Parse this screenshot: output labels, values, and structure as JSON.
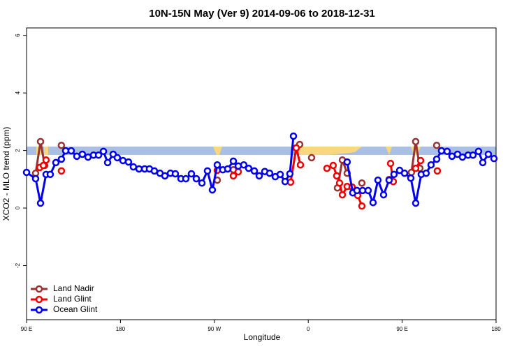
{
  "chart_data": {
    "type": "line",
    "title": "10N-15N May (Ver 9)   2014-09-06 to 2018-12-31",
    "x_label": "Longitude",
    "y_label": "XCO2 - MLO trend (ppm)",
    "xlim": [
      90,
      540
    ],
    "ylim": [
      -3.88,
      6.26
    ],
    "xticks": [
      {
        "value": 90,
        "label": "90 E"
      },
      180,
      {
        "value": 270,
        "label": "90 W"
      },
      {
        "value": 360,
        "label": "0"
      },
      {
        "value": 450,
        "label": "90 E"
      },
      {
        "value": 540,
        "label": "180"
      }
    ],
    "yticks": [
      -2,
      0,
      2,
      4,
      6
    ],
    "legend": "bottom-left",
    "series": [
      {
        "name": "Land Nadir",
        "color": "#993333",
        "x": [
          98.7,
          103.4,
          107.4,
          null,
          123.4,
          null,
          272.8,
          null,
          288.2,
          null,
          351.8,
          null,
          363.2,
          null,
          388,
          392.7,
          397.3,
          null,
          402,
          null,
          411.4,
          null,
          437.5,
          null,
          458.9,
          463,
          467,
          null,
          483.1
        ],
        "values": [
          1.21,
          2.31,
          1.48,
          null,
          2.18,
          null,
          0.97,
          null,
          1.33,
          null,
          2.21,
          null,
          1.75,
          null,
          0.7,
          1.67,
          1.21,
          null,
          0.73,
          null,
          0.87,
          null,
          0.99,
          null,
          1.24,
          2.31,
          1.38,
          null,
          2.18
        ]
      },
      {
        "name": "Land Glint",
        "color": "#ee0000",
        "x": [
          102.7,
          106.1,
          108.7,
          null,
          123.4,
          null,
          272.8,
          null,
          288.2,
          292.9,
          null,
          343.1,
          348.5,
          352.5,
          null,
          377.9,
          383.9,
          387.3,
          390,
          392.7,
          397.3,
          402,
          407.4,
          411.4,
          null,
          438.9,
          441.5,
          null,
          463,
          467.7,
          null,
          483.7
        ],
        "values": [
          1.41,
          1.48,
          1.67,
          null,
          1.29,
          null,
          1.31,
          null,
          1.12,
          1.26,
          null,
          0.9,
          2.09,
          1.5,
          null,
          1.38,
          1.48,
          1.12,
          0.87,
          0.46,
          0.75,
          0.73,
          0.44,
          0.07,
          null,
          1.55,
          0.92,
          null,
          1.38,
          1.65,
          null,
          1.29
        ]
      },
      {
        "name": "Ocean Glint",
        "color": "#0000ee",
        "x": [
          90,
          98.7,
          103.4,
          108.7,
          112.7,
          118.1,
          123.4,
          127.5,
          132.8,
          138.2,
          143.5,
          148.9,
          154.2,
          159,
          163.7,
          167.7,
          173,
          177,
          182.4,
          187.7,
          192.4,
          197.8,
          203.2,
          207.8,
          212.5,
          217.9,
          222.6,
          227.9,
          232.6,
          238,
          242.7,
          248,
          252.7,
          258.1,
          263.4,
          268.1,
          272.8,
          278.1,
          282.8,
          288.2,
          292.9,
          298.2,
          302.9,
          308.3,
          313,
          318.3,
          323,
          328.4,
          333.1,
          337.8,
          342.4,
          345.8,
          null,
          397.3,
          402.7,
          406.7,
          412.1,
          417.4,
          422.1,
          426.8,
          432.2,
          437.5,
          442.2,
          447.6,
          452.3,
          458.3,
          463,
          468.3,
          473,
          477.7,
          483.1,
          487.7,
          493.1,
          497.8,
          503.1,
          507.8,
          513.2,
          517.9,
          523.2,
          527.3,
          532.6,
          538
        ],
        "values": [
          1.24,
          1.02,
          0.17,
          1.17,
          1.17,
          1.58,
          1.7,
          1.99,
          1.99,
          1.8,
          1.87,
          1.77,
          1.84,
          1.84,
          1.97,
          1.58,
          1.87,
          1.75,
          1.65,
          1.6,
          1.43,
          1.36,
          1.36,
          1.36,
          1.29,
          1.21,
          1.12,
          1.21,
          1.19,
          1.02,
          1.02,
          1.19,
          1.02,
          0.87,
          1.29,
          0.63,
          1.5,
          1.33,
          1.36,
          1.63,
          1.46,
          1.5,
          1.38,
          1.29,
          1.12,
          1.27,
          1.21,
          1.09,
          1.17,
          0.92,
          1.19,
          2.5,
          null,
          1.6,
          0.53,
          0.61,
          0.61,
          0.61,
          0.19,
          0.97,
          0.46,
          0.97,
          1.17,
          1.31,
          1.21,
          1.04,
          0.17,
          1.17,
          1.21,
          1.5,
          1.7,
          1.99,
          1.97,
          1.8,
          1.87,
          1.77,
          1.84,
          1.84,
          1.97,
          1.58,
          1.87,
          1.72
        ]
      }
    ]
  }
}
